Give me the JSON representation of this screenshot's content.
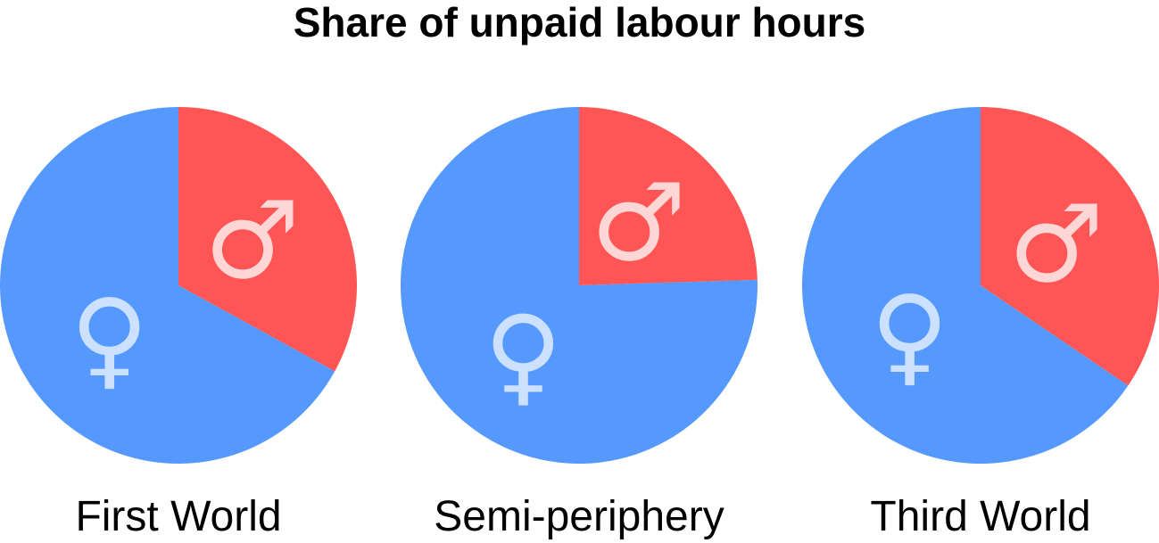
{
  "chart_data": {
    "type": "pie",
    "title": "Share of unpaid labour hours",
    "series_names": [
      "Female",
      "Male"
    ],
    "colors": {
      "female": "#5599FF",
      "male": "#FF5555",
      "symbol_female": "#CCE0FF",
      "symbol_male": "#FFD6D6"
    },
    "symbols": {
      "female": "♀",
      "male": "♂"
    },
    "charts": [
      {
        "label": "First World",
        "male_share": 0.33,
        "female_share": 0.67
      },
      {
        "label": "Semi-periphery",
        "male_share": 0.245,
        "female_share": 0.755
      },
      {
        "label": "Third World",
        "male_share": 0.345,
        "female_share": 0.655
      }
    ]
  }
}
